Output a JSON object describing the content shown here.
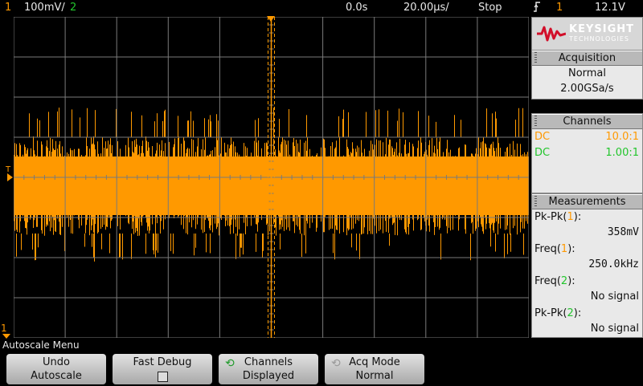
{
  "topbar": {
    "ch1_num": "1",
    "ch1_scale": "100mV/",
    "ch2_num": "2",
    "time_delay": "0.0s",
    "time_scale": "20.00µs/",
    "run_state": "Stop",
    "trigger_icon": "rising-edge-trigger-icon",
    "trigger_source": "1",
    "trigger_level": "12.1V"
  },
  "display": {
    "ch1_label": "1",
    "trigger_marker": "T",
    "trace_color": "#ff9900",
    "ch2_color": "#22c52c"
  },
  "side": {
    "logo_top": "KEYSIGHT",
    "logo_bottom": "TECHNOLOGIES",
    "acquisition": {
      "title": "Acquisition",
      "mode": "Normal",
      "rate": "2.00GSa/s"
    },
    "channels": {
      "title": "Channels",
      "rows": [
        {
          "coupling": "DC",
          "probe": "10.0:1"
        },
        {
          "coupling": "DC",
          "probe": "1.00:1"
        }
      ]
    },
    "measurements": {
      "title": "Measurements",
      "items": [
        {
          "name": "Pk-Pk(",
          "ch": "1",
          "close": "):",
          "value": "358mV"
        },
        {
          "name": "Freq(",
          "ch": "1",
          "close": "):",
          "value": "250.0kHz"
        },
        {
          "name": "Freq(",
          "ch": "2",
          "close": "):",
          "value": "No signal"
        },
        {
          "name": "Pk-Pk(",
          "ch": "2",
          "close": "):",
          "value": "No signal"
        }
      ]
    }
  },
  "menu": {
    "title": "Autoscale Menu",
    "keys": [
      {
        "line1": "Undo",
        "line2": "Autoscale"
      },
      {
        "line1": "Fast Debug",
        "line2": ""
      },
      {
        "line1": "Channels",
        "line2": "Displayed"
      },
      {
        "line1": "Acq Mode",
        "line2": "Normal"
      }
    ]
  }
}
